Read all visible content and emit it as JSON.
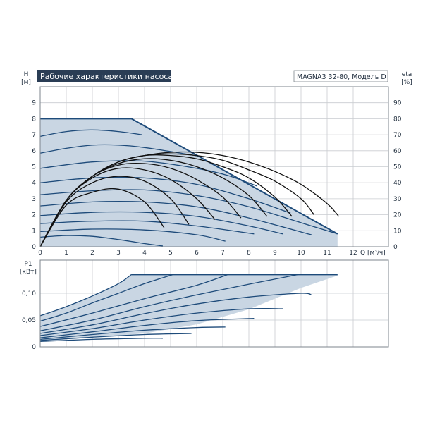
{
  "header": {
    "title": "Рабочие характеристики насоса",
    "model": "MAGNA3 32-80, Модель D"
  },
  "colors": {
    "title_bg": "#2a3d55",
    "area_fill": "#c9d6e3",
    "curve": "#1e4b7a",
    "eta_curve": "#111111",
    "grid": "#c9ccd0"
  },
  "chart_data": [
    {
      "type": "line",
      "ylabel_left": "H",
      "ylabel_left_unit": "[м]",
      "ylabel_right": "eta",
      "ylabel_right_unit": "[%]",
      "xlabel": "Q [м³/ч]",
      "xlim": [
        0,
        13
      ],
      "ylim": [
        0,
        10
      ],
      "ylim_right": [
        0,
        100
      ],
      "x_ticks": [
        0,
        1,
        2,
        3,
        4,
        5,
        6,
        7,
        8,
        9,
        10,
        11,
        12
      ],
      "y_ticks": [
        0,
        1,
        2,
        3,
        4,
        5,
        6,
        7,
        8,
        9
      ],
      "y_ticks_right": [
        0,
        10,
        20,
        30,
        40,
        50,
        60,
        70,
        80,
        90
      ],
      "grid": true,
      "envelope": {
        "x": [
          0,
          3.5,
          11.4,
          11.4,
          0
        ],
        "y": [
          8,
          8,
          0.8,
          0,
          0
        ]
      },
      "head_curves": [
        {
          "x": [
            0,
            3.5
          ],
          "y": [
            8.0,
            8.0
          ]
        },
        {
          "x": [
            0,
            1,
            2,
            3,
            3.9
          ],
          "y": [
            6.9,
            7.2,
            7.3,
            7.2,
            7.0
          ]
        },
        {
          "x": [
            0,
            1,
            2,
            3,
            4,
            5,
            6.3
          ],
          "y": [
            5.85,
            6.15,
            6.35,
            6.35,
            6.2,
            5.95,
            5.6
          ]
        },
        {
          "x": [
            0,
            2,
            4,
            6,
            7.2,
            8.3
          ],
          "y": [
            4.9,
            5.3,
            5.35,
            4.9,
            4.45,
            3.8
          ]
        },
        {
          "x": [
            0,
            2,
            4,
            6,
            8,
            9.6
          ],
          "y": [
            4.0,
            4.3,
            4.3,
            3.9,
            3.0,
            2.1
          ]
        },
        {
          "x": [
            0,
            2,
            4,
            6,
            8,
            10,
            11.4
          ],
          "y": [
            3.25,
            3.5,
            3.55,
            3.2,
            2.5,
            1.5,
            0.8
          ]
        },
        {
          "x": [
            0,
            2,
            4,
            6,
            8,
            10.4
          ],
          "y": [
            2.55,
            2.8,
            2.8,
            2.5,
            1.8,
            0.75
          ]
        },
        {
          "x": [
            0,
            2,
            4,
            6,
            8,
            9.3
          ],
          "y": [
            1.95,
            2.15,
            2.15,
            1.9,
            1.3,
            0.8
          ]
        },
        {
          "x": [
            0,
            2,
            4,
            6,
            8.2
          ],
          "y": [
            1.45,
            1.6,
            1.6,
            1.3,
            0.8
          ]
        },
        {
          "x": [
            0,
            2,
            4,
            6,
            7.1
          ],
          "y": [
            0.95,
            1.1,
            1.05,
            0.75,
            0.35
          ]
        },
        {
          "x": [
            0,
            1,
            2,
            3,
            4,
            4.7
          ],
          "y": [
            0.6,
            0.7,
            0.65,
            0.45,
            0.2,
            0.05
          ]
        }
      ],
      "eta_curves": [
        {
          "x": [
            0,
            1,
            2,
            3,
            4,
            4.75
          ],
          "y": [
            0,
            26,
            34,
            36,
            28,
            12
          ]
        },
        {
          "x": [
            0,
            1,
            2,
            3,
            4,
            5,
            5.7
          ],
          "y": [
            0,
            28,
            40,
            44,
            41,
            30,
            14
          ]
        },
        {
          "x": [
            0,
            1,
            2,
            3,
            4,
            5,
            6,
            6.7
          ],
          "y": [
            0,
            29,
            43,
            49,
            48,
            42,
            30,
            17
          ]
        },
        {
          "x": [
            0,
            1,
            2,
            3,
            4,
            5,
            6,
            7,
            7.7
          ],
          "y": [
            0,
            29,
            44,
            51,
            52,
            49,
            42,
            31,
            18
          ]
        },
        {
          "x": [
            0,
            1,
            2,
            3,
            4,
            5,
            6,
            7,
            8,
            8.7
          ],
          "y": [
            0,
            29,
            44,
            52,
            55,
            54,
            50,
            43,
            32,
            19
          ]
        },
        {
          "x": [
            0,
            1,
            2,
            3,
            4,
            5,
            6,
            7,
            8,
            9,
            9.65
          ],
          "y": [
            0,
            29,
            44,
            53,
            57,
            57,
            55,
            50,
            43,
            31,
            19
          ]
        },
        {
          "x": [
            0,
            1,
            2,
            3,
            4,
            5,
            6,
            7,
            8,
            9,
            10,
            10.5
          ],
          "y": [
            0,
            29,
            44,
            53,
            57,
            58,
            57,
            54,
            48,
            41,
            30,
            20
          ]
        },
        {
          "x": [
            0,
            1,
            2,
            3,
            4,
            5,
            6,
            7,
            8,
            9,
            10,
            11,
            11.45
          ],
          "y": [
            0,
            29,
            44,
            53,
            57,
            59,
            59,
            57,
            53,
            47,
            39,
            27,
            19
          ]
        }
      ]
    },
    {
      "type": "line",
      "ylabel": "P1",
      "ylabel_unit": "[кВт]",
      "xlim": [
        0,
        13
      ],
      "ylim": [
        0,
        0.15
      ],
      "y_ticks": [
        0,
        0.05,
        0.1
      ],
      "y_tick_labels": [
        "0",
        "0,05",
        "0,10"
      ],
      "grid": true,
      "envelope": {
        "x": [
          0,
          1,
          2,
          3,
          3.5,
          11.4,
          11.4,
          10,
          8,
          6,
          4,
          2,
          0
        ],
        "y": [
          0.058,
          0.075,
          0.095,
          0.118,
          0.135,
          0.135,
          0.133,
          0.11,
          0.07,
          0.042,
          0.025,
          0.018,
          0.01
        ]
      },
      "power_curves": [
        {
          "x": [
            0,
            1,
            2,
            3,
            3.5
          ],
          "y": [
            0.058,
            0.075,
            0.095,
            0.118,
            0.135
          ]
        },
        {
          "x": [
            0,
            1,
            2,
            3,
            4,
            5.1
          ],
          "y": [
            0.048,
            0.063,
            0.082,
            0.1,
            0.118,
            0.135
          ]
        },
        {
          "x": [
            0,
            2,
            4,
            6,
            7.2
          ],
          "y": [
            0.038,
            0.063,
            0.09,
            0.115,
            0.135
          ]
        },
        {
          "x": [
            0,
            2,
            4,
            6,
            8,
            9.9
          ],
          "y": [
            0.03,
            0.05,
            0.075,
            0.097,
            0.117,
            0.135
          ]
        },
        {
          "x": [
            0,
            2,
            4,
            6,
            8,
            10,
            10.4
          ],
          "y": [
            0.025,
            0.041,
            0.062,
            0.08,
            0.093,
            0.1,
            0.097
          ]
        },
        {
          "x": [
            0,
            2,
            4,
            6,
            8,
            9.3
          ],
          "y": [
            0.021,
            0.034,
            0.05,
            0.063,
            0.071,
            0.071
          ]
        },
        {
          "x": [
            0,
            2,
            4,
            6,
            8.2
          ],
          "y": [
            0.017,
            0.028,
            0.04,
            0.049,
            0.053
          ]
        },
        {
          "x": [
            0,
            2,
            4,
            6,
            7.1
          ],
          "y": [
            0.014,
            0.023,
            0.031,
            0.036,
            0.037
          ]
        },
        {
          "x": [
            0,
            2,
            4,
            5.8
          ],
          "y": [
            0.012,
            0.018,
            0.023,
            0.025
          ]
        },
        {
          "x": [
            0,
            2,
            4,
            4.7
          ],
          "y": [
            0.01,
            0.014,
            0.016,
            0.016
          ]
        }
      ]
    }
  ]
}
